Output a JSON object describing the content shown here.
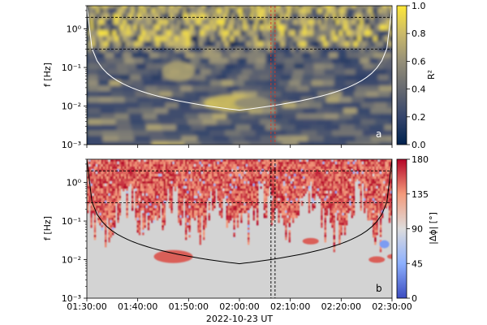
{
  "figure": {
    "xlabel": "2022-10-23 UT",
    "x_ticks": [
      "01:30:00",
      "01:40:00",
      "01:50:00",
      "02:00:00",
      "02:10:00",
      "02:20:00",
      "02:30:00"
    ]
  },
  "chart_data": [
    {
      "type": "heatmap",
      "panel_label": "a",
      "quantity": "wavelet coherence",
      "ylabel": "f [Hz]",
      "y_scale": "log",
      "ylim": [
        0.001,
        4
      ],
      "y_ticks": [
        0.001,
        0.01,
        0.1,
        1
      ],
      "y_tick_labels": [
        "10⁻³",
        "10⁻²",
        "10⁻¹",
        "10⁰"
      ],
      "xlim_minutes": [
        0,
        60
      ],
      "colorbar": {
        "label": "R²",
        "min": 0.0,
        "max": 1.0,
        "ticks": [
          0.0,
          0.2,
          0.4,
          0.6,
          0.8,
          1.0
        ],
        "tick_labels": [
          "0.0",
          "0.2",
          "0.4",
          "0.6",
          "0.8",
          "1.0"
        ],
        "colormap": "cividis",
        "colors": [
          "#00224e",
          "#35456c",
          "#666970",
          "#958f78",
          "#cbba69",
          "#fee838"
        ]
      },
      "cone_of_influence_color": "#ffffff",
      "hlines_hz": [
        2.0,
        0.3
      ],
      "vlines_minutes": [
        36.2,
        37.0
      ],
      "vline_color": "#d03a2a",
      "line_color": "#000000"
    },
    {
      "type": "heatmap",
      "panel_label": "b",
      "quantity": "phase difference",
      "ylabel": "f [Hz]",
      "y_scale": "log",
      "ylim": [
        0.001,
        4
      ],
      "y_ticks": [
        0.001,
        0.01,
        0.1,
        1
      ],
      "y_tick_labels": [
        "10⁻³",
        "10⁻²",
        "10⁻¹",
        "10⁰"
      ],
      "xlim_minutes": [
        0,
        60
      ],
      "colorbar": {
        "label": "|Δϕ| [°]",
        "min": 0,
        "max": 180,
        "ticks": [
          0,
          45,
          90,
          135,
          180
        ],
        "tick_labels": [
          "0",
          "45",
          "90",
          "135",
          "180"
        ],
        "colormap": "coolwarm",
        "colors": [
          "#3b4cc0",
          "#8db0fe",
          "#dddcdc",
          "#f49a7b",
          "#b40426"
        ]
      },
      "masked_color": "#d3d3d3",
      "cone_of_influence_color": "#000000",
      "hlines_hz": [
        2.0,
        0.3
      ],
      "vlines_minutes": [
        36.2,
        37.0
      ],
      "vline_color": "#000000",
      "line_color": "#000000"
    }
  ]
}
